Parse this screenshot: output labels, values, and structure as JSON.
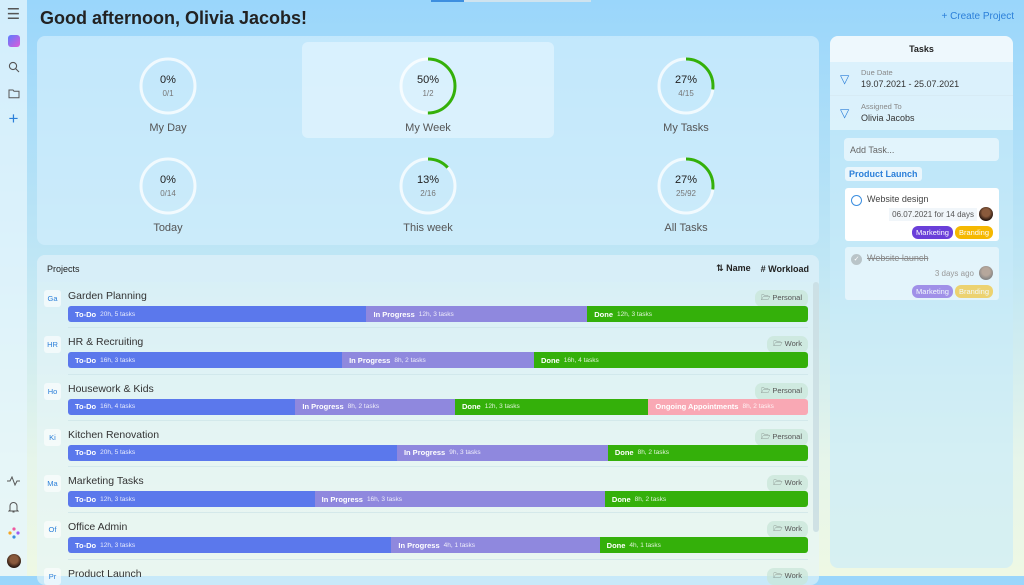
{
  "header": {
    "greeting": "Good afternoon, Olivia Jacobs!",
    "create_project": "+ Create Project"
  },
  "sidebar": {
    "icons": [
      "menu-icon",
      "app-logo-icon",
      "search-icon",
      "folder-icon",
      "add-icon",
      "activity-icon",
      "bell-icon",
      "apps-icon",
      "avatar"
    ]
  },
  "stats": [
    {
      "label": "My Day",
      "percent": "0%",
      "count": "0/1",
      "value": 0
    },
    {
      "label": "My Week",
      "percent": "50%",
      "count": "1/2",
      "value": 50,
      "selected": true
    },
    {
      "label": "My Tasks",
      "percent": "27%",
      "count": "4/15",
      "value": 27
    },
    {
      "label": "Today",
      "percent": "0%",
      "count": "0/14",
      "value": 0
    },
    {
      "label": "This week",
      "percent": "13%",
      "count": "2/16",
      "value": 13
    },
    {
      "label": "All Tasks",
      "percent": "27%",
      "count": "25/92",
      "value": 27
    }
  ],
  "projects": {
    "title": "Projects",
    "sort_name": "Name",
    "sort_workload": "Workload",
    "items": [
      {
        "abbr": "Ga",
        "name": "Garden Planning",
        "tag": "Personal",
        "segments": [
          {
            "label": "To-Do",
            "detail": "20h, 5 tasks",
            "hours": 20,
            "color": "#5b78ec"
          },
          {
            "label": "In Progress",
            "detail": "12h, 3 tasks",
            "hours": 12,
            "color": "#8f88de"
          },
          {
            "label": "Done",
            "detail": "12h, 3 tasks",
            "hours": 12,
            "color": "#34b00a"
          }
        ]
      },
      {
        "abbr": "HR",
        "name": "HR & Recruiting",
        "tag": "Work",
        "segments": [
          {
            "label": "To-Do",
            "detail": "16h, 3 tasks",
            "hours": 16,
            "color": "#5b78ec"
          },
          {
            "label": "In Progress",
            "detail": "8h, 2 tasks",
            "hours": 8,
            "color": "#8f88de"
          },
          {
            "label": "Done",
            "detail": "16h, 4 tasks",
            "hours": 16,
            "color": "#34b00a"
          }
        ]
      },
      {
        "abbr": "Ho",
        "name": "Housework & Kids",
        "tag": "Personal",
        "segments": [
          {
            "label": "To-Do",
            "detail": "16h, 4 tasks",
            "hours": 16,
            "color": "#5b78ec"
          },
          {
            "label": "In Progress",
            "detail": "8h, 2 tasks",
            "hours": 8,
            "color": "#8f88de"
          },
          {
            "label": "Done",
            "detail": "12h, 3 tasks",
            "hours": 12,
            "color": "#34b00a"
          },
          {
            "label": "Ongoing Appointments",
            "detail": "8h, 2 tasks",
            "hours": 8,
            "color": "#f9a8b4"
          }
        ]
      },
      {
        "abbr": "Ki",
        "name": "Kitchen Renovation",
        "tag": "Personal",
        "segments": [
          {
            "label": "To-Do",
            "detail": "20h, 5 tasks",
            "hours": 20,
            "color": "#5b78ec"
          },
          {
            "label": "In Progress",
            "detail": "9h, 3 tasks",
            "hours": 9,
            "color": "#8f88de"
          },
          {
            "label": "Done",
            "detail": "8h, 2 tasks",
            "hours": 8,
            "color": "#34b00a"
          }
        ]
      },
      {
        "abbr": "Ma",
        "name": "Marketing Tasks",
        "tag": "Work",
        "segments": [
          {
            "label": "To-Do",
            "detail": "12h, 3 tasks",
            "hours": 12,
            "color": "#5b78ec"
          },
          {
            "label": "In Progress",
            "detail": "16h, 3 tasks",
            "hours": 16,
            "color": "#8f88de"
          },
          {
            "label": "Done",
            "detail": "8h, 2 tasks",
            "hours": 8,
            "color": "#34b00a"
          }
        ]
      },
      {
        "abbr": "Of",
        "name": "Office Admin",
        "tag": "Work",
        "segments": [
          {
            "label": "To-Do",
            "detail": "12h, 3 tasks",
            "hours": 12,
            "color": "#5b78ec"
          },
          {
            "label": "In Progress",
            "detail": "4h, 1 tasks",
            "hours": 4,
            "color": "#8f88de"
          },
          {
            "label": "Done",
            "detail": "4h, 1 tasks",
            "hours": 4,
            "color": "#34b00a"
          }
        ]
      },
      {
        "abbr": "Pr",
        "name": "Product Launch",
        "tag": "Work",
        "segments": []
      }
    ]
  },
  "tasks": {
    "title": "Tasks",
    "filters": [
      {
        "key": "Due Date",
        "value": "19.07.2021 - 25.07.2021"
      },
      {
        "key": "Assigned To",
        "value": "Olivia Jacobs"
      }
    ],
    "add_placeholder": "Add Task...",
    "project": "Product Launch",
    "cards": [
      {
        "title": "Website design",
        "due": "06.07.2021 for 14 days",
        "done": false,
        "tags": [
          {
            "label": "Marketing",
            "color": "#6a3fd9"
          },
          {
            "label": "Branding",
            "color": "#f5b800"
          }
        ]
      },
      {
        "title": "Website launch",
        "due": "3 days ago",
        "done": true,
        "tags": [
          {
            "label": "Marketing",
            "color": "#6a3fd9"
          },
          {
            "label": "Branding",
            "color": "#f5b800"
          }
        ]
      }
    ]
  }
}
